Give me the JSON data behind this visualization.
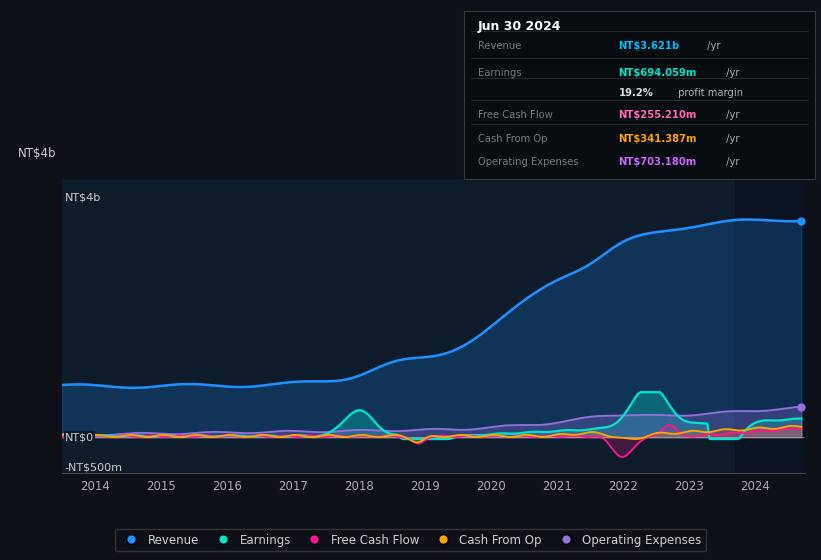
{
  "bg_color": "#0d1117",
  "chart_bg": "#0d1b2a",
  "xlim": [
    2013.5,
    2024.75
  ],
  "ylim": [
    -600,
    4300
  ],
  "xticks": [
    2014,
    2015,
    2016,
    2017,
    2018,
    2019,
    2020,
    2021,
    2022,
    2023,
    2024
  ],
  "y_label_top": "NT$4b",
  "y_label_zero": "NT$0",
  "y_label_neg": "-NT$500m",
  "y_pos_top": 4000,
  "y_pos_zero": 0,
  "y_pos_neg": -500,
  "colors": {
    "revenue": "#1e90ff",
    "earnings": "#00e5cc",
    "fcf": "#ff1493",
    "cash_op": "#ffa500",
    "op_exp": "#9370db"
  },
  "info_title": "Jun 30 2024",
  "info_rows": [
    {
      "label": "Revenue",
      "value": "NT$3.621b",
      "suffix": " /yr",
      "color": "#00bfff"
    },
    {
      "label": "Earnings",
      "value": "NT$694.059m",
      "suffix": " /yr",
      "color": "#00e5cc"
    },
    {
      "label": "",
      "value": "19.2%",
      "suffix": " profit margin",
      "color": "#ffffff",
      "bold": true
    },
    {
      "label": "Free Cash Flow",
      "value": "NT$255.210m",
      "suffix": " /yr",
      "color": "#ff69b4"
    },
    {
      "label": "Cash From Op",
      "value": "NT$341.387m",
      "suffix": " /yr",
      "color": "#ffa500"
    },
    {
      "label": "Operating Expenses",
      "value": "NT$703.180m",
      "suffix": " /yr",
      "color": "#cc66ff"
    }
  ],
  "legend": [
    {
      "label": "Revenue",
      "color": "#1e90ff"
    },
    {
      "label": "Earnings",
      "color": "#00e5cc"
    },
    {
      "label": "Free Cash Flow",
      "color": "#ff1493"
    },
    {
      "label": "Cash From Op",
      "color": "#ffa500"
    },
    {
      "label": "Operating Expenses",
      "color": "#9370db"
    }
  ]
}
